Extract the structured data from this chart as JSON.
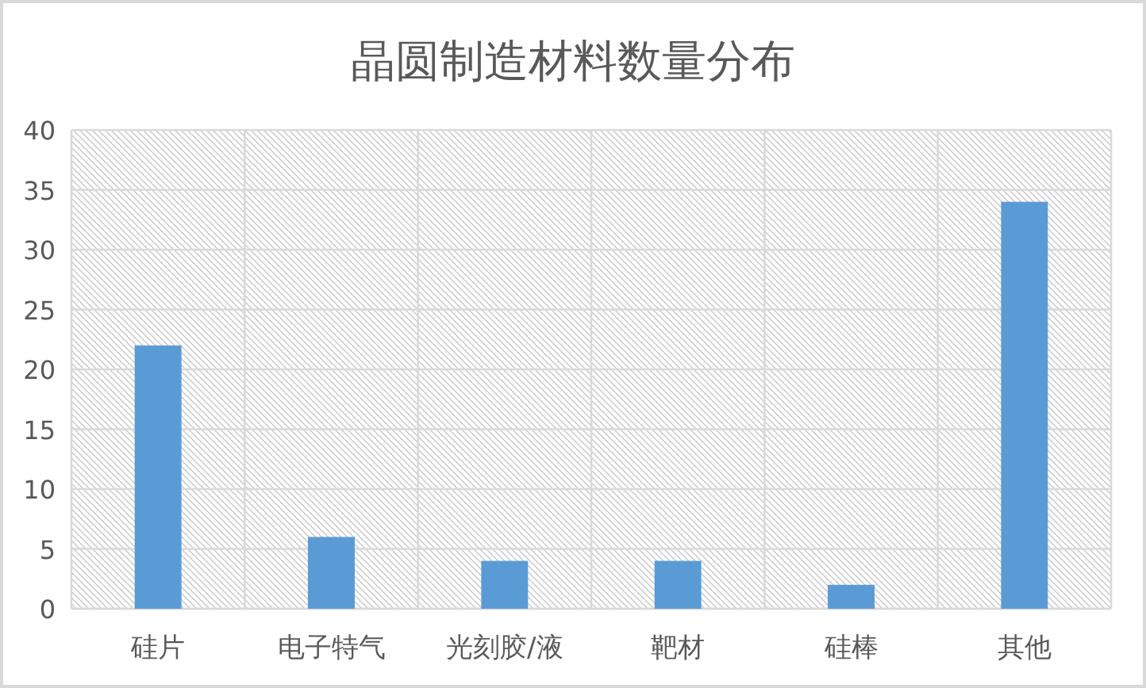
{
  "chart_data": {
    "type": "bar",
    "title": "晶圆制造材料数量分布",
    "categories": [
      "硅片",
      "电子特气",
      "光刻胶/液",
      "靶材",
      "硅棒",
      "其他"
    ],
    "values": [
      22,
      6,
      4,
      4,
      2,
      34
    ],
    "color": "#5b9bd5",
    "ylim": [
      0,
      40
    ],
    "yticks": [
      0,
      5,
      10,
      15,
      20,
      25,
      30,
      35,
      40
    ],
    "grid": true
  }
}
